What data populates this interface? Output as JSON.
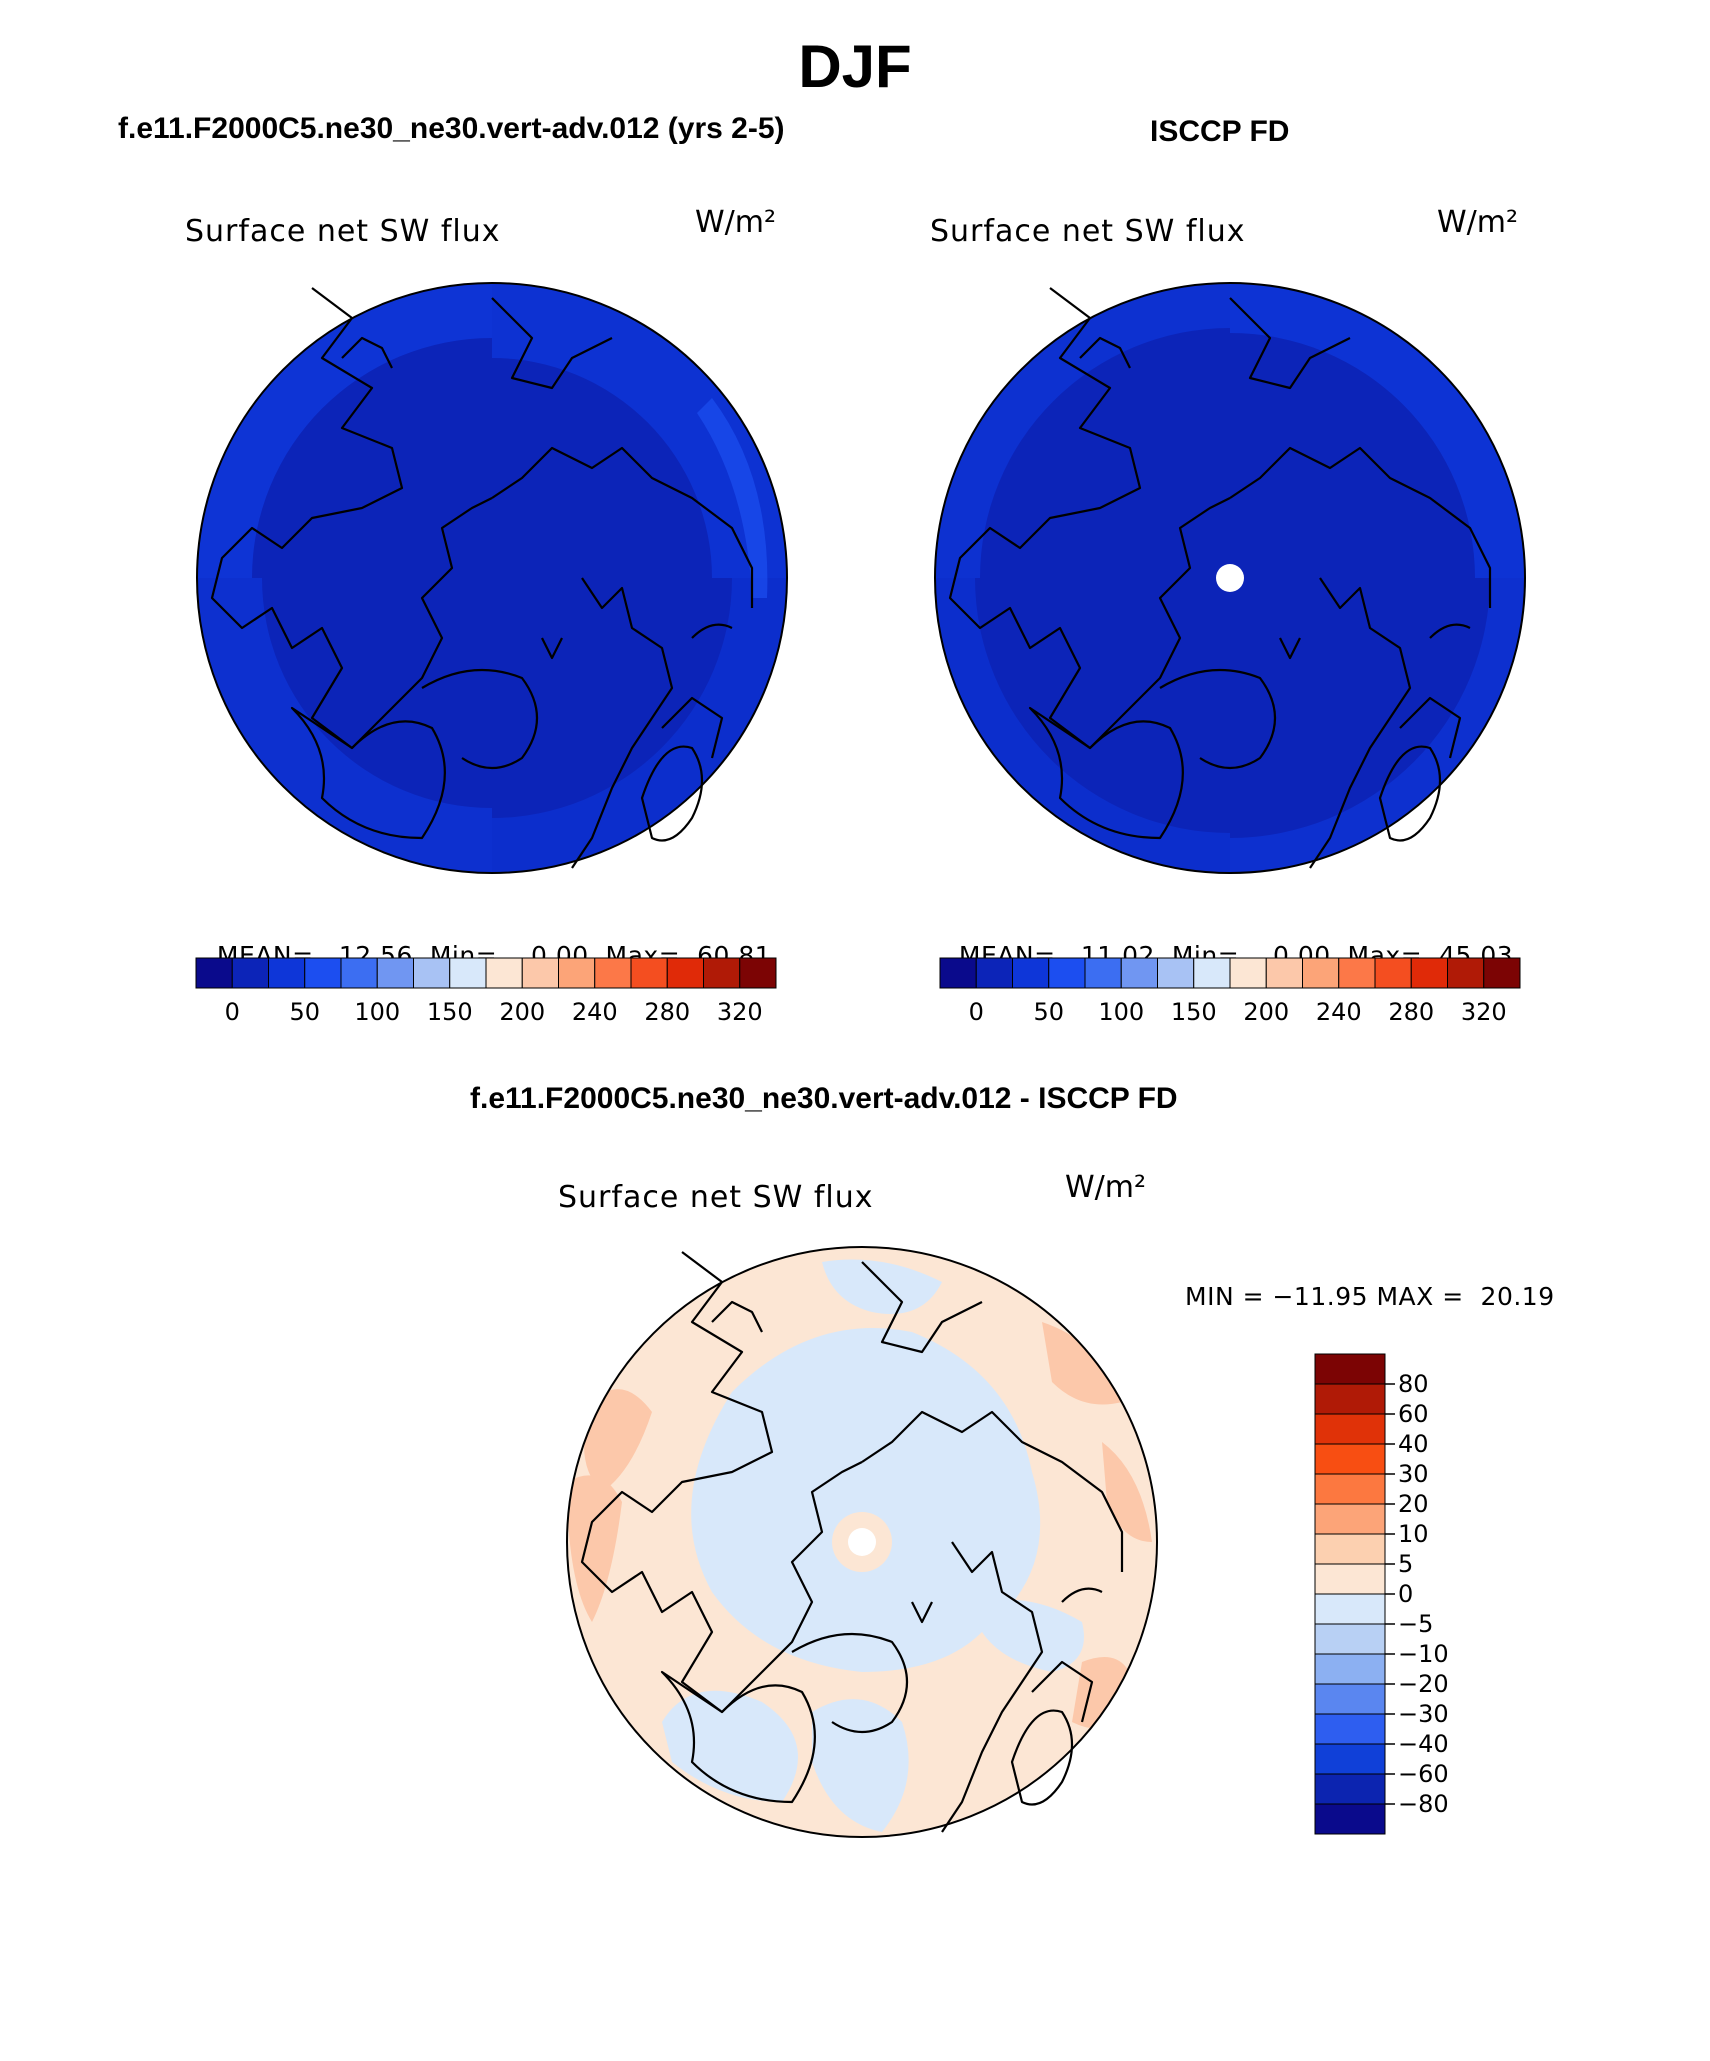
{
  "figure": {
    "title": "DJF",
    "panels": [
      {
        "id": "model",
        "title": "f.e11.F2000C5.ne30_ne30.vert-adv.012 (yrs 2-5)",
        "variable": "Surface net SW flux",
        "units": "W/m²",
        "stats": {
          "mean_label": "MEAN=",
          "mean": "12.56",
          "min_label": "Min=",
          "min": "0.00",
          "max_label": "Max=",
          "max": "60.81"
        }
      },
      {
        "id": "obs",
        "title": "ISCCP FD",
        "variable": "Surface net SW flux",
        "units": "W/m²",
        "stats": {
          "mean_label": "MEAN=",
          "mean": "11.02",
          "min_label": "Min=",
          "min": "0.00",
          "max_label": "Max=",
          "max": "45.03"
        }
      },
      {
        "id": "diff",
        "title": "f.e11.F2000C5.ne30_ne30.vert-adv.012 - ISCCP FD",
        "variable": "Surface net SW flux",
        "units": "W/m²",
        "stats": {
          "text": "MIN = −11.95 MAX =  20.19"
        }
      }
    ],
    "abs_colorbar": {
      "colors": [
        "#0a0a8c",
        "#0c24b8",
        "#0e36d8",
        "#1c4ef0",
        "#3c6ef2",
        "#7096f2",
        "#a8c2f4",
        "#d8e8fa",
        "#fce6d4",
        "#fcc8aa",
        "#fca478",
        "#fc7848",
        "#f44e20",
        "#e02a08",
        "#b01a06",
        "#7c0404"
      ],
      "labels": [
        "0",
        "50",
        "100",
        "150",
        "200",
        "240",
        "280",
        "320"
      ]
    },
    "diff_colorbar": {
      "colors": [
        "#7c0404",
        "#b01a06",
        "#e03208",
        "#f84e12",
        "#fc7840",
        "#fca478",
        "#fcd0b0",
        "#fce6d4",
        "#d8e8fa",
        "#b8d0f4",
        "#8cb0f2",
        "#5a86f0",
        "#2e5ef0",
        "#1040d8",
        "#0c24b0",
        "#0a0a8c"
      ],
      "labels": [
        "80",
        "60",
        "40",
        "30",
        "20",
        "10",
        "5",
        "0",
        "−5",
        "−10",
        "−20",
        "−30",
        "−40",
        "−60",
        "−80"
      ]
    }
  }
}
